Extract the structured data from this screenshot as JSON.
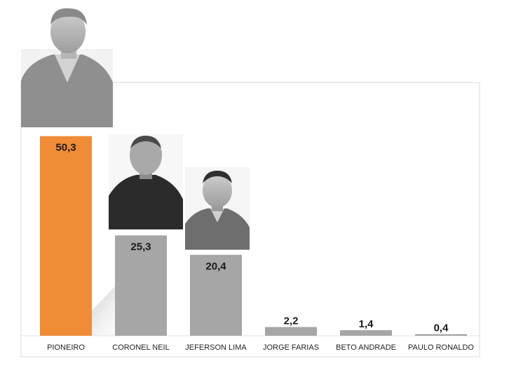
{
  "chart_data": {
    "type": "bar",
    "title": "",
    "xlabel": "",
    "ylabel": "",
    "categories": [
      "PIONEIRO",
      "CORONEL NEIL",
      "JEFERSON LIMA",
      "JORGE FARIAS",
      "BETO ANDRADE",
      "PAULO RONALDO"
    ],
    "values": [
      50.3,
      25.3,
      20.4,
      2.2,
      1.4,
      0.4
    ],
    "value_labels": [
      "50,3",
      "25,3",
      "20,4",
      "2,2",
      "1,4",
      "0,4"
    ],
    "ylim": [
      0,
      52
    ],
    "grid": false,
    "legend": "none",
    "highlight_index": 0,
    "colors": {
      "highlight": "#ef8c35",
      "default": "#a6a6a6",
      "frame": "#d9d9d9"
    },
    "photos": [
      {
        "candidate": "PIONEIRO",
        "icon": "candidate-photo"
      },
      {
        "candidate": "CORONEL NEIL",
        "icon": "candidate-photo"
      },
      {
        "candidate": "JEFERSON LIMA",
        "icon": "candidate-photo"
      }
    ]
  }
}
